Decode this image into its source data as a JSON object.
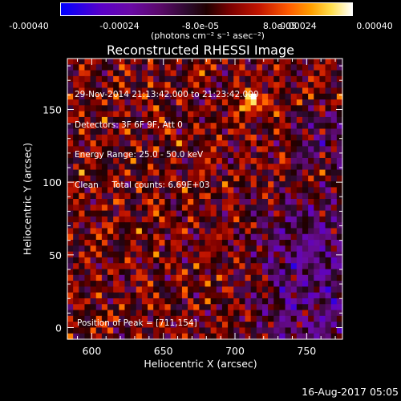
{
  "chart_data": {
    "type": "heatmap",
    "title": "Reconstructed RHESSI Image",
    "xlabel": "Heliocentric X (arcsec)",
    "ylabel": "Heliocentric Y (arcsec)",
    "xlim": [
      583,
      775
    ],
    "ylim": [
      -8,
      185
    ],
    "x_ticks": [
      600,
      650,
      700,
      750
    ],
    "y_ticks": [
      0,
      50,
      100,
      150
    ],
    "colorbar": {
      "ticks": [
        "-0.00040",
        "-0.00024",
        "-8.0e-05",
        "8.0e-05",
        "0.00024",
        "0.00040"
      ],
      "unit_label": "(photons cm⁻² s⁻¹ asec⁻²)",
      "range": [
        -0.0004,
        0.0004
      ]
    },
    "annotations": [
      "29-Nov-2014 21:13:42.000 to 21:23:42.000",
      "Detectors: 3F 6F 9F, Att 0",
      "Energy Range: 25.0 - 50.0 keV",
      "Clean     Total counts: 6.69E+03"
    ],
    "peak_label": "Position of Peak = [711,154]",
    "peak": [
      711,
      154
    ],
    "footer_date": "16-Aug-2017 05:05"
  }
}
